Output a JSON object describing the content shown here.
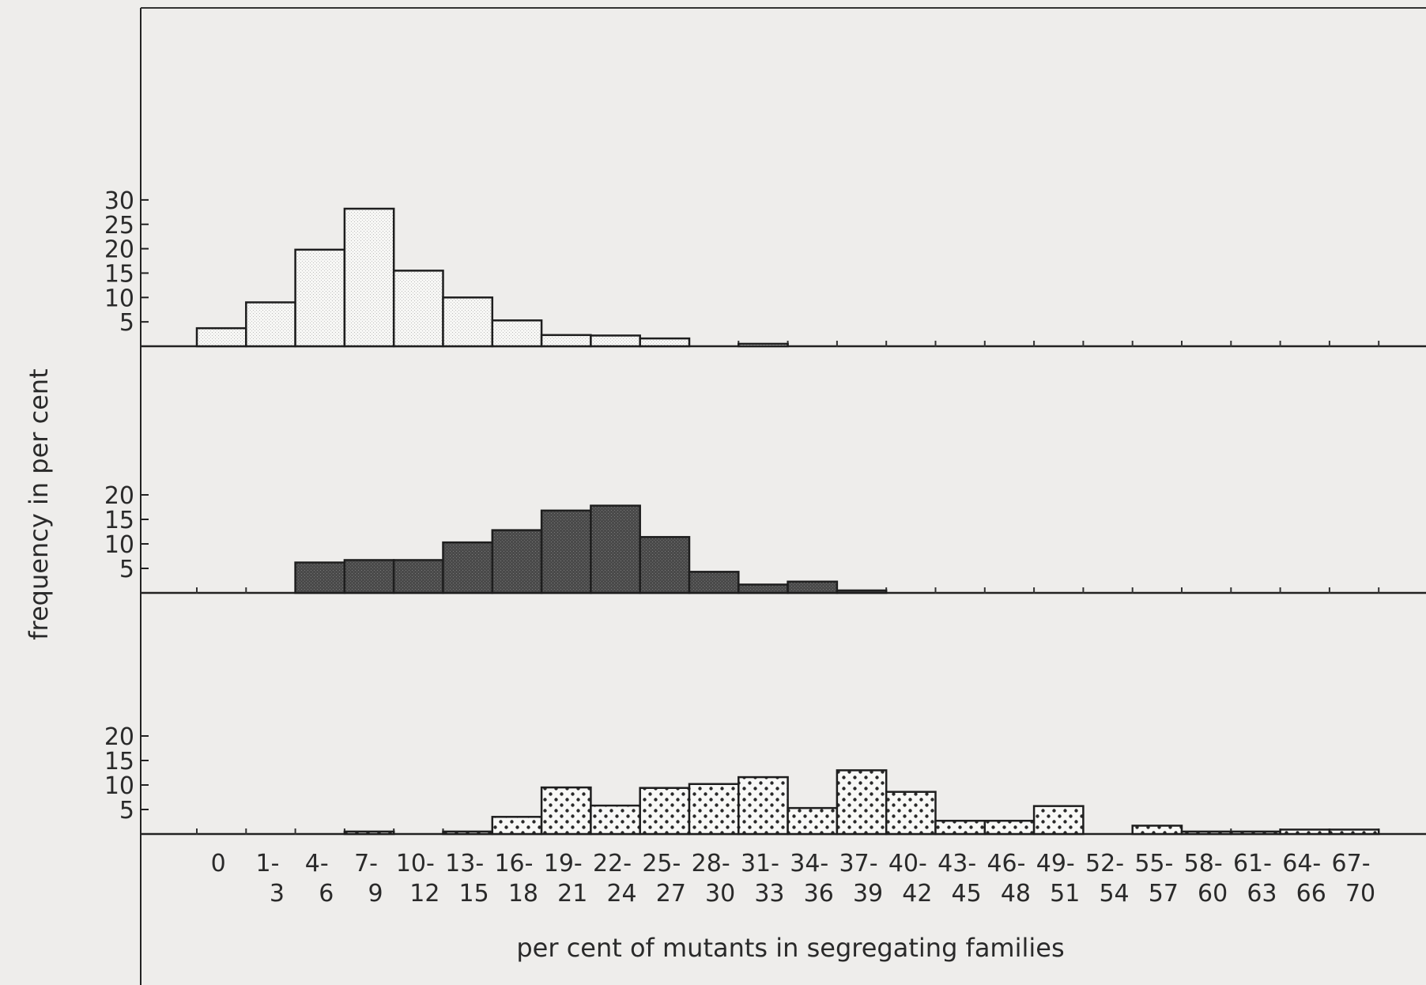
{
  "chart_data": {
    "type": "bar",
    "ylabel": "frequency in per cent",
    "xlabel": "per cent of mutants in segregating families",
    "categories": [
      [
        "0",
        ""
      ],
      [
        "1-",
        "3"
      ],
      [
        "4-",
        "6"
      ],
      [
        "7-",
        "9"
      ],
      [
        "10-",
        "12"
      ],
      [
        "13-",
        "15"
      ],
      [
        "16-",
        "18"
      ],
      [
        "19-",
        "21"
      ],
      [
        "22-",
        "24"
      ],
      [
        "25-",
        "27"
      ],
      [
        "28-",
        "30"
      ],
      [
        "31-",
        "33"
      ],
      [
        "34-",
        "36"
      ],
      [
        "37-",
        "39"
      ],
      [
        "40-",
        "42"
      ],
      [
        "43-",
        "45"
      ],
      [
        "46-",
        "48"
      ],
      [
        "49-",
        "51"
      ],
      [
        "52-",
        "54"
      ],
      [
        "55-",
        "57"
      ],
      [
        "58-",
        "60"
      ],
      [
        "61-",
        "63"
      ],
      [
        "64-",
        "66"
      ],
      [
        "67-",
        "70"
      ]
    ],
    "panels": [
      {
        "fill": "light-stipple",
        "yticks": [
          5,
          10,
          15,
          20,
          25,
          30
        ],
        "ylim": [
          0,
          32
        ],
        "values": [
          3.7,
          9,
          19.8,
          28.2,
          15.5,
          10,
          5.3,
          2.3,
          2.2,
          1.6,
          0,
          0.5,
          0,
          0,
          0,
          0,
          0,
          0,
          0,
          0,
          0,
          0,
          0,
          0
        ]
      },
      {
        "fill": "dark-stipple",
        "yticks": [
          5,
          10,
          15,
          20
        ],
        "ylim": [
          0,
          23
        ],
        "values": [
          0,
          0,
          6.2,
          6.7,
          6.7,
          10.3,
          12.8,
          16.8,
          17.8,
          11.4,
          4.3,
          1.7,
          2.3,
          0.5,
          0,
          0,
          0,
          0,
          0,
          0,
          0,
          0,
          0,
          0
        ]
      },
      {
        "fill": "dot-pattern",
        "yticks": [
          5,
          10,
          15,
          20
        ],
        "ylim": [
          0,
          23
        ],
        "values": [
          0,
          0,
          0,
          0.5,
          0,
          0.5,
          3.5,
          9.5,
          5.8,
          9.4,
          10.2,
          11.6,
          5.3,
          13,
          8.6,
          2.7,
          2.7,
          5.7,
          0,
          1.7,
          0.5,
          0.5,
          0.9,
          0.9
        ]
      }
    ]
  }
}
